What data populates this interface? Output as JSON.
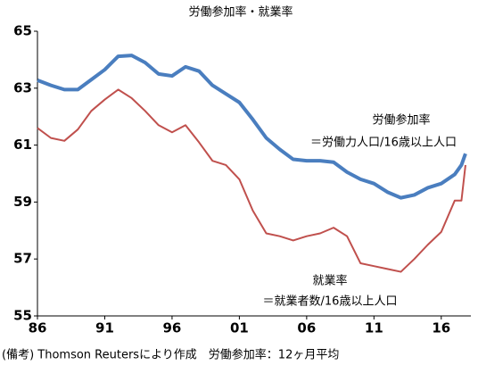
{
  "chart_data": {
    "type": "line",
    "title": "労働参加率・就業率",
    "x": [
      1986,
      1987,
      1988,
      1989,
      1990,
      1991,
      1992,
      1993,
      1994,
      1995,
      1996,
      1997,
      1998,
      1999,
      2000,
      2001,
      2002,
      2003,
      2004,
      2005,
      2006,
      2007,
      2008,
      2009,
      2010,
      2011,
      2012,
      2013,
      2014,
      2015,
      2016,
      2017,
      2017.5,
      2017.8
    ],
    "series": [
      {
        "name": "労働参加率",
        "color": "#4a7ebf",
        "values": [
          63.28,
          63.1,
          62.95,
          62.95,
          63.3,
          63.65,
          64.12,
          64.15,
          63.9,
          63.5,
          63.43,
          63.75,
          63.6,
          63.1,
          62.8,
          62.5,
          61.9,
          61.25,
          60.85,
          60.5,
          60.45,
          60.45,
          60.4,
          60.05,
          59.8,
          59.65,
          59.35,
          59.15,
          59.25,
          59.5,
          59.65,
          59.97,
          60.3,
          60.7
        ]
      },
      {
        "name": "就業率",
        "color": "#c0504d",
        "values": [
          61.6,
          61.25,
          61.15,
          61.55,
          62.2,
          62.6,
          62.95,
          62.65,
          62.2,
          61.7,
          61.45,
          61.7,
          61.1,
          60.45,
          60.3,
          59.8,
          58.7,
          57.9,
          57.8,
          57.65,
          57.8,
          57.9,
          58.1,
          57.8,
          56.85,
          56.75,
          56.65,
          56.55,
          57.0,
          57.5,
          57.95,
          59.05,
          59.05,
          60.3
        ]
      }
    ],
    "annotations": [
      "＝労働力人口/16歳以上人口",
      "＝就業者数/16歳以上人口"
    ],
    "note": "(備考) Thomson Reutersにより作成　労働参加率：12ヶ月平均",
    "xlim": [
      1986,
      2018.2
    ],
    "xticks": [
      {
        "value": 1986,
        "label": "86"
      },
      {
        "value": 1991,
        "label": "91"
      },
      {
        "value": 1996,
        "label": "96"
      },
      {
        "value": 2001,
        "label": "01"
      },
      {
        "value": 2006,
        "label": "06"
      },
      {
        "value": 2011,
        "label": "11"
      },
      {
        "value": 2016,
        "label": "16"
      }
    ],
    "ylim": [
      55,
      65
    ],
    "yticks": [
      55,
      57,
      59,
      61,
      63,
      65
    ]
  }
}
